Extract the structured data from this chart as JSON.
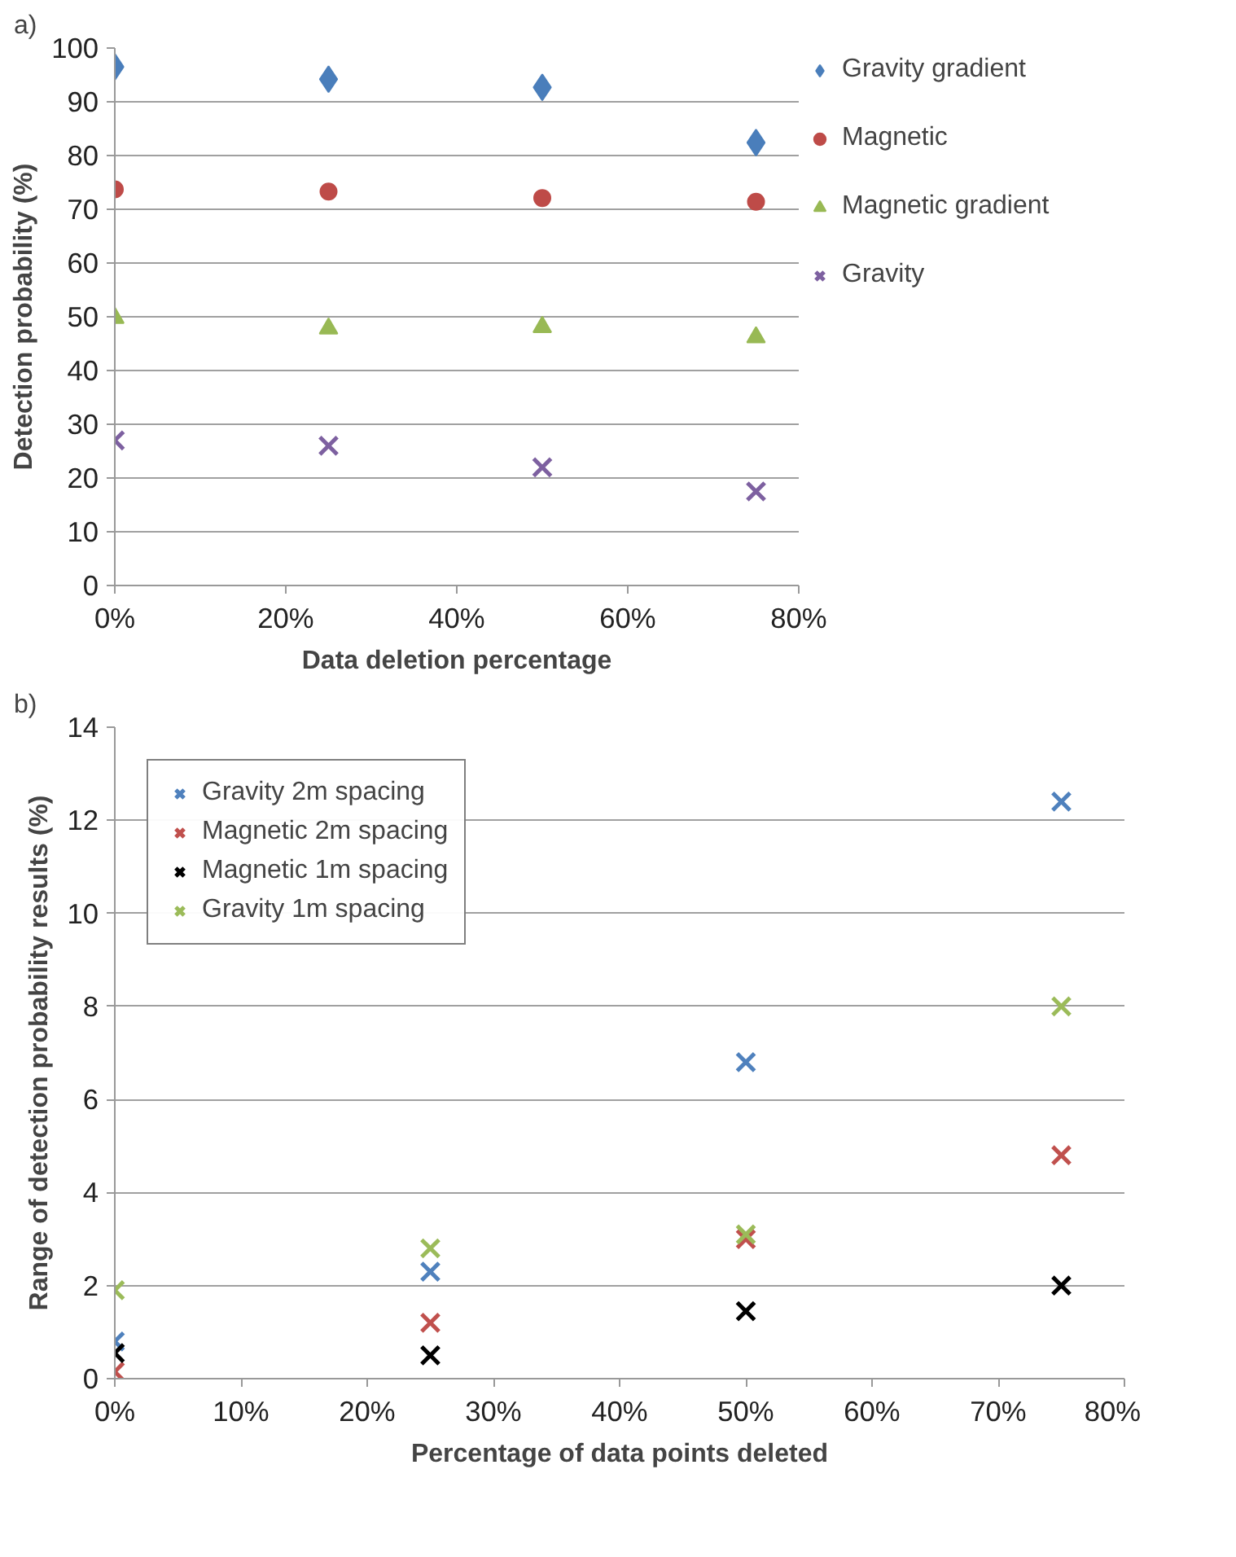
{
  "chart_data": [
    {
      "type": "scatter",
      "xlabel": "Data deletion percentage",
      "ylabel": "Detection probability (%)",
      "annotations": [
        "a)"
      ],
      "grid": "y",
      "legend": "right",
      "x": [
        0,
        0.25,
        0.5,
        0.75
      ],
      "xlim": [
        0,
        0.8
      ],
      "xticks": [
        {
          "value": 0,
          "label": "0%"
        },
        {
          "value": 0.2,
          "label": "20%"
        },
        {
          "value": 0.4,
          "label": "40%"
        },
        {
          "value": 0.6,
          "label": "60%"
        },
        {
          "value": 0.8,
          "label": "80%"
        }
      ],
      "ylim": [
        0,
        100
      ],
      "yticks": [
        0,
        10,
        20,
        30,
        40,
        50,
        60,
        70,
        80,
        90,
        100
      ],
      "series": [
        {
          "name": "Gravity gradient",
          "color": "#4a7ebb",
          "marker": "diamond",
          "values": [
            96.5,
            94.2,
            92.7,
            82.4
          ]
        },
        {
          "name": "Magnetic",
          "color": "#be4b48",
          "marker": "circle",
          "values": [
            73.7,
            73.3,
            72.1,
            71.4
          ]
        },
        {
          "name": "Magnetic gradient",
          "color": "#98b954",
          "marker": "triangle",
          "values": [
            49.8,
            47.8,
            48.1,
            46.2
          ]
        },
        {
          "name": "Gravity",
          "color": "#7d60a0",
          "marker": "cross",
          "values": [
            27,
            26,
            22,
            17.5
          ]
        }
      ]
    },
    {
      "type": "scatter",
      "xlabel": "Percentage of data points deleted",
      "ylabel": "Range of detection probability results (%)",
      "annotations": [
        "b)"
      ],
      "grid": "y",
      "legend": "top left",
      "marker": "cross",
      "x": [
        0,
        0.25,
        0.5,
        0.75
      ],
      "xlim": [
        0,
        0.8
      ],
      "xticks": [
        {
          "value": 0,
          "label": "0%"
        },
        {
          "value": 0.1,
          "label": "10%"
        },
        {
          "value": 0.2,
          "label": "20%"
        },
        {
          "value": 0.3,
          "label": "30%"
        },
        {
          "value": 0.4,
          "label": "40%"
        },
        {
          "value": 0.5,
          "label": "50%"
        },
        {
          "value": 0.6,
          "label": "60%"
        },
        {
          "value": 0.7,
          "label": "70%"
        },
        {
          "value": 0.8,
          "label": "80%"
        }
      ],
      "ylim": [
        0,
        14
      ],
      "yticks": [
        0,
        2,
        4,
        6,
        8,
        10,
        12,
        14
      ],
      "series": [
        {
          "name": "Gravity 2m spacing",
          "color": "#4f81bd",
          "values": [
            0.8,
            2.3,
            6.8,
            12.4
          ]
        },
        {
          "name": "Magnetic 2m spacing",
          "color": "#c0504d",
          "values": [
            0.15,
            1.2,
            3.0,
            4.8
          ]
        },
        {
          "name": "Magnetic 1m spacing",
          "color": "#000000",
          "values": [
            0.55,
            0.5,
            1.45,
            2.0
          ]
        },
        {
          "name": "Gravity 1m spacing",
          "color": "#9bbb59",
          "values": [
            1.9,
            2.8,
            3.1,
            8.0
          ]
        }
      ]
    }
  ]
}
